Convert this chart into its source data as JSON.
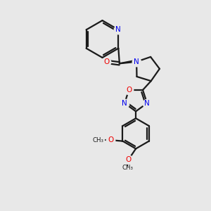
{
  "bg_color": "#e8e8e8",
  "bond_color": "#1a1a1a",
  "N_color": "#0000ee",
  "O_color": "#ee0000",
  "lw": 1.6,
  "figsize": [
    3.0,
    3.0
  ],
  "dpi": 100,
  "xlim": [
    0,
    10
  ],
  "ylim": [
    0,
    10
  ]
}
